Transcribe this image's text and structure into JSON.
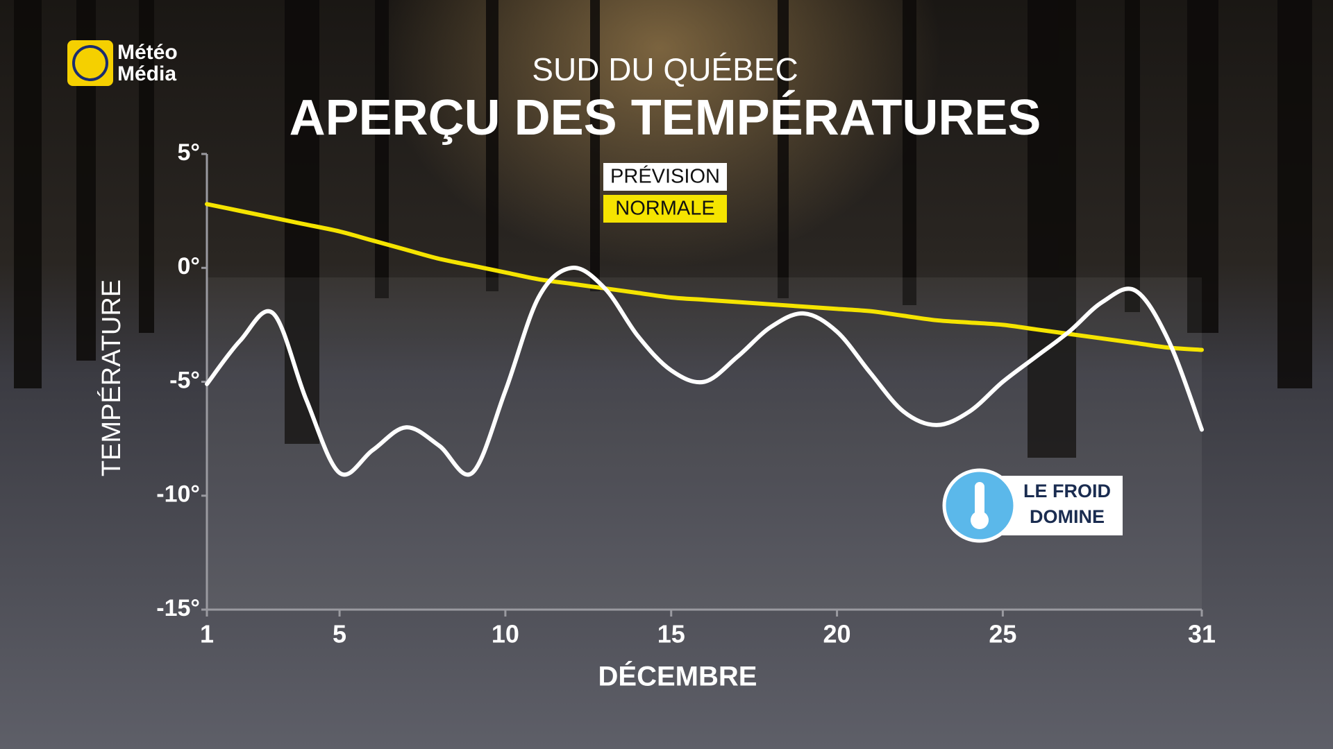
{
  "chart_data": {
    "type": "line",
    "brand": "Météo Média",
    "subtitle": "SUD DU QUÉBEC",
    "title": "APERÇU DES TEMPÉRATURES",
    "y_label": "TEMPÉRATURE",
    "x_label": "DÉCEMBRE",
    "annotation": "LE FROID DOMINE",
    "x": [
      1,
      2,
      3,
      4,
      5,
      6,
      7,
      8,
      9,
      10,
      11,
      12,
      13,
      14,
      15,
      16,
      17,
      18,
      19,
      20,
      21,
      22,
      23,
      24,
      25,
      26,
      27,
      28,
      29,
      30,
      31
    ],
    "xlim": [
      1,
      31
    ],
    "xticks": [
      1,
      5,
      10,
      15,
      20,
      25,
      31
    ],
    "ylim": [
      -15,
      5
    ],
    "yticks": [
      {
        "value": -15,
        "label": "-15°"
      },
      {
        "value": -10,
        "label": "-10°"
      },
      {
        "value": -5,
        "label": "-5°"
      },
      {
        "value": 0,
        "label": "0°"
      },
      {
        "value": 5,
        "label": "5°"
      }
    ],
    "series": [
      {
        "name": "PRÉVISION",
        "color": "#ffffff",
        "values": [
          -5.1,
          -3.2,
          -2.0,
          -5.8,
          -9.0,
          -8.0,
          -7.0,
          -7.8,
          -9.0,
          -5.4,
          -1.3,
          0,
          -0.9,
          -3.0,
          -4.5,
          -5.0,
          -3.9,
          -2.6,
          -2.0,
          -2.8,
          -4.6,
          -6.3,
          -6.9,
          -6.3,
          -5.0,
          -3.9,
          -2.8,
          -1.5,
          -1.0,
          -3.2,
          -7.1
        ]
      },
      {
        "name": "NORMALE",
        "color": "#f5e400",
        "values": [
          2.8,
          2.5,
          2.2,
          1.9,
          1.6,
          1.2,
          0.8,
          0.4,
          0.1,
          -0.2,
          -0.5,
          -0.7,
          -0.9,
          -1.1,
          -1.3,
          -1.4,
          -1.5,
          -1.6,
          -1.7,
          -1.8,
          -1.9,
          -2.1,
          -2.3,
          -2.4,
          -2.5,
          -2.7,
          -2.9,
          -3.1,
          -3.3,
          -3.5,
          -3.6
        ]
      }
    ]
  }
}
